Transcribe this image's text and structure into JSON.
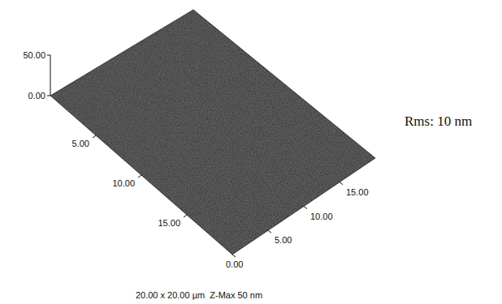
{
  "chart_data": {
    "type": "surface",
    "xlim": [
      0,
      20
    ],
    "xticks": [
      {
        "value": 5,
        "label": "5.00"
      },
      {
        "value": 10,
        "label": "10.00"
      },
      {
        "value": 15,
        "label": "15.00"
      }
    ],
    "ylim": [
      0,
      20
    ],
    "yticks": [
      {
        "value": 0,
        "label": "0.00"
      },
      {
        "value": 5,
        "label": "5.00"
      },
      {
        "value": 10,
        "label": "10.00"
      },
      {
        "value": 15,
        "label": "15.00"
      }
    ],
    "zlim": [
      0,
      50
    ],
    "zticks": [
      {
        "value": 0,
        "label": "0.00"
      },
      {
        "value": 50,
        "label": "50.00"
      }
    ],
    "caption": "20.00 x 20.00 µm  Z-Max 50 nm",
    "annotation": "Rms: 10 nm",
    "color": "#3a3a3a"
  }
}
